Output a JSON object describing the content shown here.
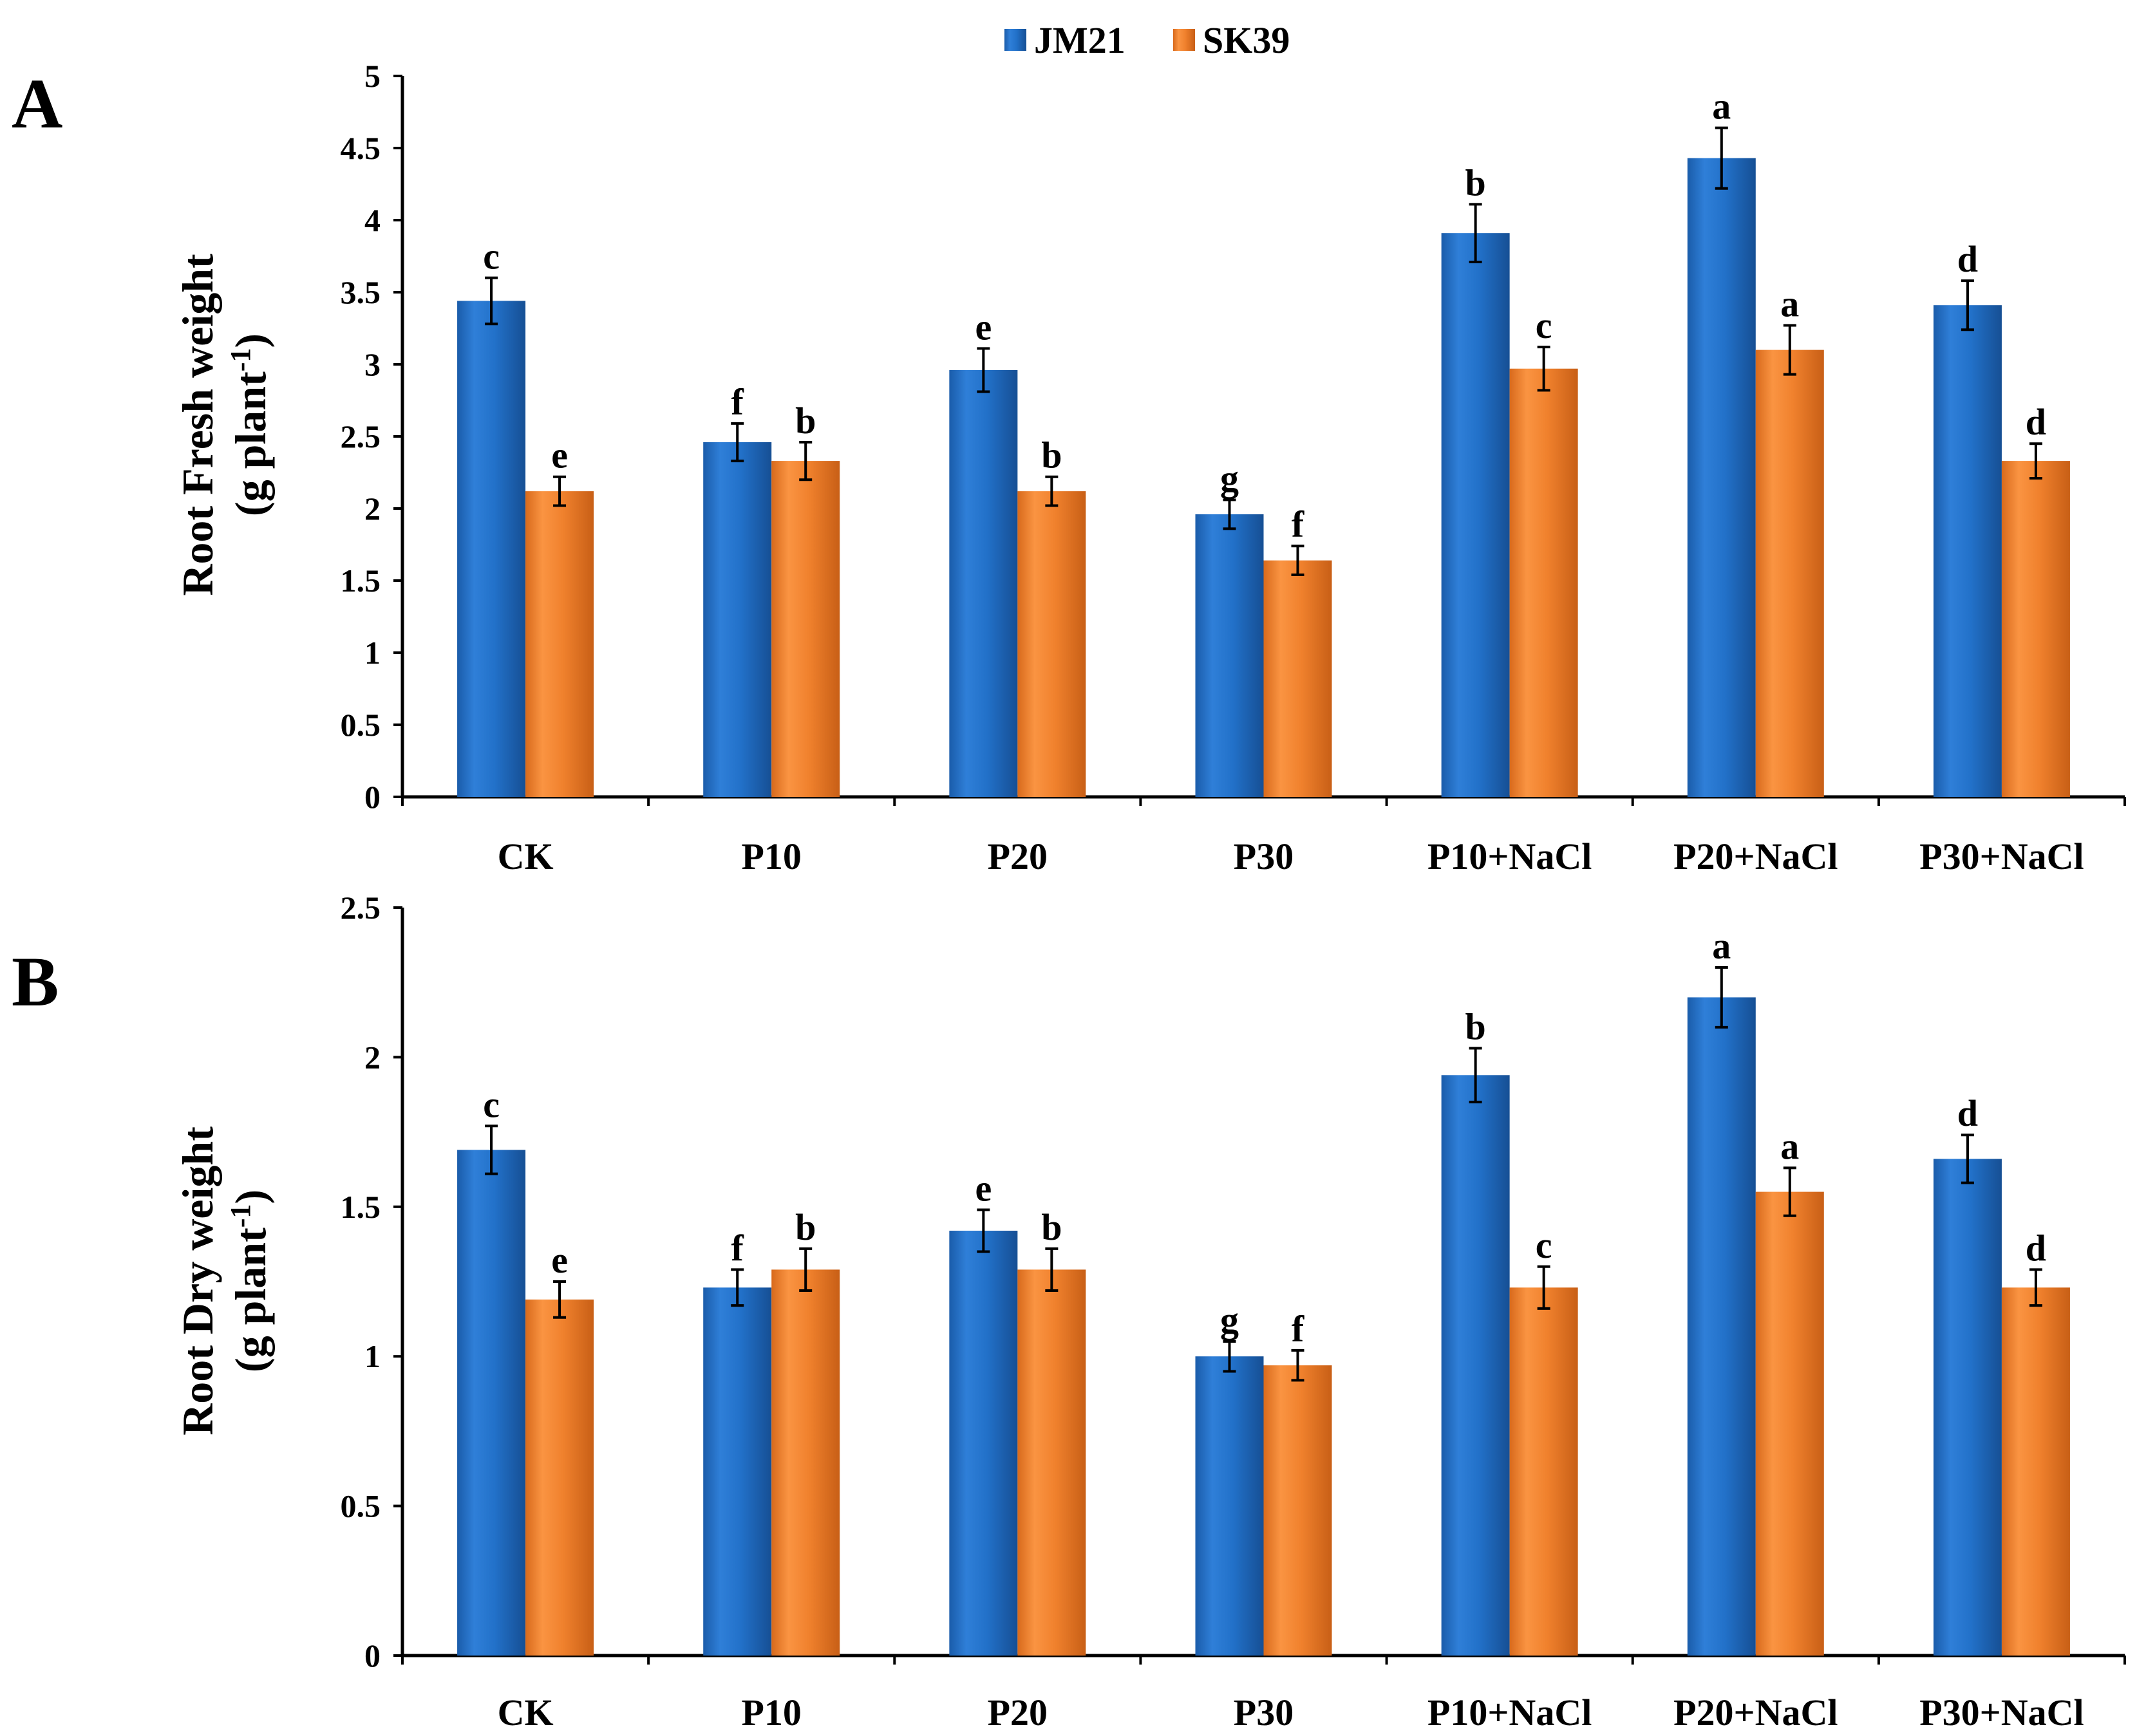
{
  "colors": {
    "JM21": "#2271C9",
    "SK39": "#F0812D"
  },
  "legend": [
    {
      "name": "JM21",
      "color_key": "JM21"
    },
    {
      "name": "SK39",
      "color_key": "SK39"
    }
  ],
  "chart_data": [
    {
      "type": "bar",
      "panel_label": "A",
      "title": "",
      "xlabel": "",
      "ylabel_line1": "Root Fresh weight",
      "ylabel_line2_main": "(g plant",
      "ylabel_line2_sup": "-1",
      "ylabel_line2_end": ")",
      "ylim": [
        0,
        5
      ],
      "ytick_values": [
        0,
        0.5,
        1,
        1.5,
        2,
        2.5,
        3,
        3.5,
        4,
        4.5,
        5
      ],
      "ytick_labels": [
        "0",
        "0.5",
        "1",
        "1.5",
        "2",
        "2.5",
        "3",
        "3.5",
        "4",
        "4.5",
        "5"
      ],
      "categories": [
        "CK",
        "P10",
        "P20",
        "P30",
        "P10+NaCl",
        "P20+NaCl",
        "P30+NaCl"
      ],
      "series": [
        {
          "name": "JM21",
          "values": [
            3.44,
            2.46,
            2.96,
            1.96,
            3.91,
            4.43,
            3.41
          ],
          "errors": [
            0.16,
            0.13,
            0.15,
            0.1,
            0.2,
            0.21,
            0.17
          ],
          "letters": [
            "c",
            "f",
            "e",
            "g",
            "b",
            "a",
            "d"
          ]
        },
        {
          "name": "SK39",
          "values": [
            2.12,
            2.33,
            2.12,
            1.64,
            2.97,
            3.1,
            2.33
          ],
          "errors": [
            0.1,
            0.13,
            0.1,
            0.1,
            0.15,
            0.17,
            0.12
          ],
          "letters": [
            "e",
            "b",
            "b",
            "f",
            "c",
            "a",
            "d"
          ]
        }
      ]
    },
    {
      "type": "bar",
      "panel_label": "B",
      "title": "",
      "xlabel": "",
      "ylabel_line1": "Root Dry weight",
      "ylabel_line2_main": "(g plant",
      "ylabel_line2_sup": "-1",
      "ylabel_line2_end": ")",
      "ylim": [
        0,
        2.5
      ],
      "ytick_values": [
        0,
        0.5,
        1,
        1.5,
        2,
        2.5
      ],
      "ytick_labels": [
        "0",
        "0.5",
        "1",
        "1.5",
        "2",
        "2.5"
      ],
      "categories": [
        "CK",
        "P10",
        "P20",
        "P30",
        "P10+NaCl",
        "P20+NaCl",
        "P30+NaCl"
      ],
      "series": [
        {
          "name": "JM21",
          "values": [
            1.69,
            1.23,
            1.42,
            1.0,
            1.94,
            2.2,
            1.66
          ],
          "errors": [
            0.08,
            0.06,
            0.07,
            0.05,
            0.09,
            0.1,
            0.08
          ],
          "letters": [
            "c",
            "f",
            "e",
            "g",
            "b",
            "a",
            "d"
          ]
        },
        {
          "name": "SK39",
          "values": [
            1.19,
            1.29,
            1.29,
            0.97,
            1.23,
            1.55,
            1.23
          ],
          "errors": [
            0.06,
            0.07,
            0.07,
            0.05,
            0.07,
            0.08,
            0.06
          ],
          "letters": [
            "e",
            "b",
            "b",
            "f",
            "c",
            "a",
            "d"
          ]
        }
      ]
    }
  ]
}
